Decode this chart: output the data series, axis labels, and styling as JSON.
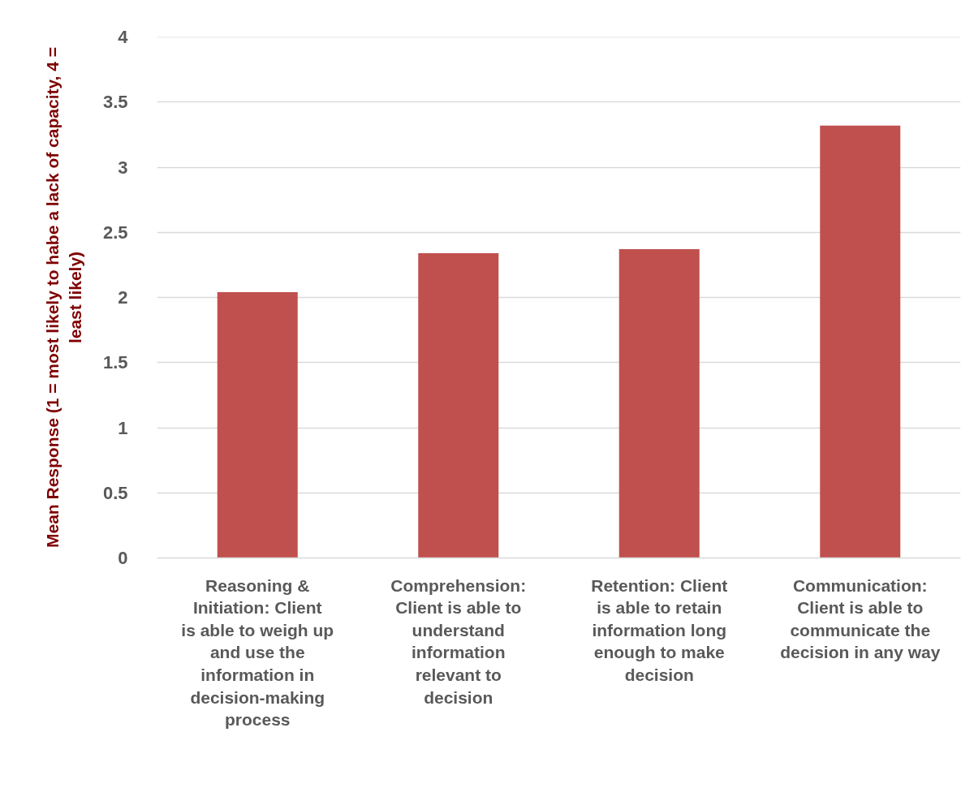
{
  "chart_data": {
    "type": "bar",
    "categories": [
      "Reasoning & Initiation: Client is able to weigh up and use the information in decision-making process",
      "Comprehension: Client is able to understand information relevant to decision",
      "Retention: Client is able to retain information long enough to make decision",
      "Communication: Client is able to communicate the decision in any way"
    ],
    "values": [
      2.04,
      2.34,
      2.37,
      3.32
    ],
    "color": "#c0504d",
    "ylabel": "Mean Response (1 = most likely to habe a lack of capacity, 4 = least likely)",
    "ylim": [
      0,
      4
    ],
    "yticks": [
      0,
      0.5,
      1,
      1.5,
      2,
      2.5,
      3,
      3.5,
      4
    ],
    "grid": "y"
  }
}
